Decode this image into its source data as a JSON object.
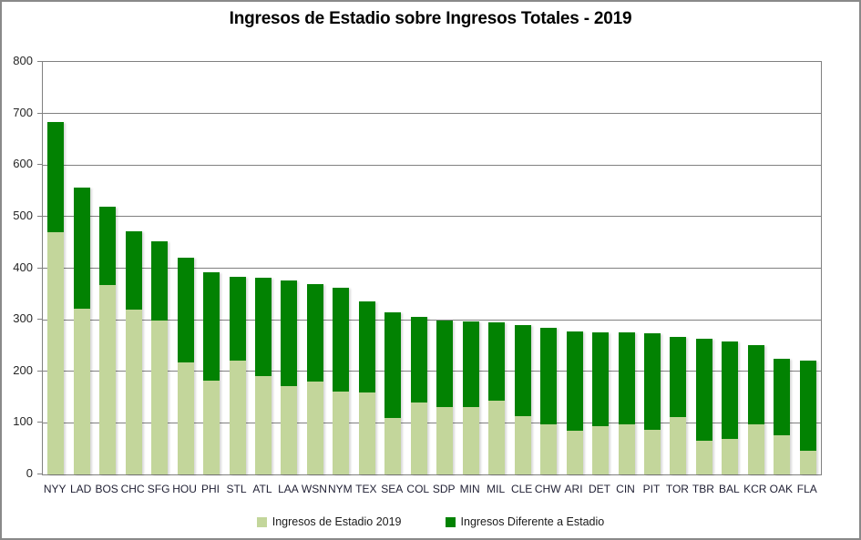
{
  "title": "Ingresos de Estadio sobre Ingresos Totales - 2019",
  "colors": {
    "stadium_green": "#c3d69b",
    "other_green": "#028202",
    "gridline": "#808080",
    "axis_text": "#262626",
    "category_text": "#1f1f33",
    "outer_border": "#898989",
    "background": "#ffffff"
  },
  "legend": [
    {
      "label": "Ingresos de Estadio 2019",
      "color": "#c3d69b"
    },
    {
      "label": "Ingresos Diferente a Estadio",
      "color": "#028202"
    }
  ],
  "chart_data": {
    "type": "bar",
    "stacked": true,
    "title": "Ingresos de Estadio sobre Ingresos Totales - 2019",
    "xlabel": "",
    "ylabel": "",
    "ylim": [
      0,
      800
    ],
    "ytick_interval": 100,
    "yticks": [
      0,
      100,
      200,
      300,
      400,
      500,
      600,
      700,
      800
    ],
    "grid": true,
    "legend_position": "bottom",
    "categories": [
      "NYY",
      "LAD",
      "BOS",
      "CHC",
      "SFG",
      "HOU",
      "PHI",
      "STL",
      "ATL",
      "LAA",
      "WSN",
      "NYM",
      "TEX",
      "SEA",
      "COL",
      "SDP",
      "MIN",
      "MIL",
      "CLE",
      "CHW",
      "ARI",
      "DET",
      "CIN",
      "PIT",
      "TOR",
      "TBR",
      "BAL",
      "KCR",
      "OAK",
      "FLA"
    ],
    "series": [
      {
        "name": "Ingresos de Estadio 2019",
        "color": "#c3d69b",
        "values": [
          470,
          321,
          367,
          320,
          299,
          218,
          182,
          220,
          190,
          172,
          181,
          161,
          159,
          110,
          140,
          130,
          131,
          143,
          113,
          97,
          85,
          93,
          98,
          86,
          112,
          66,
          69,
          97,
          76,
          46
        ]
      },
      {
        "name": "Ingresos Diferente a Estadio",
        "color": "#028202",
        "values": [
          213,
          235,
          152,
          151,
          153,
          202,
          210,
          163,
          191,
          205,
          188,
          201,
          177,
          205,
          166,
          169,
          165,
          152,
          177,
          188,
          192,
          183,
          178,
          187,
          154,
          198,
          188,
          154,
          149,
          175
        ]
      }
    ],
    "totals": [
      683,
      556,
      519,
      471,
      452,
      420,
      392,
      383,
      381,
      377,
      369,
      362,
      336,
      315,
      306,
      299,
      296,
      295,
      290,
      285,
      277,
      276,
      276,
      273,
      266,
      264,
      257,
      251,
      225,
      221
    ]
  }
}
